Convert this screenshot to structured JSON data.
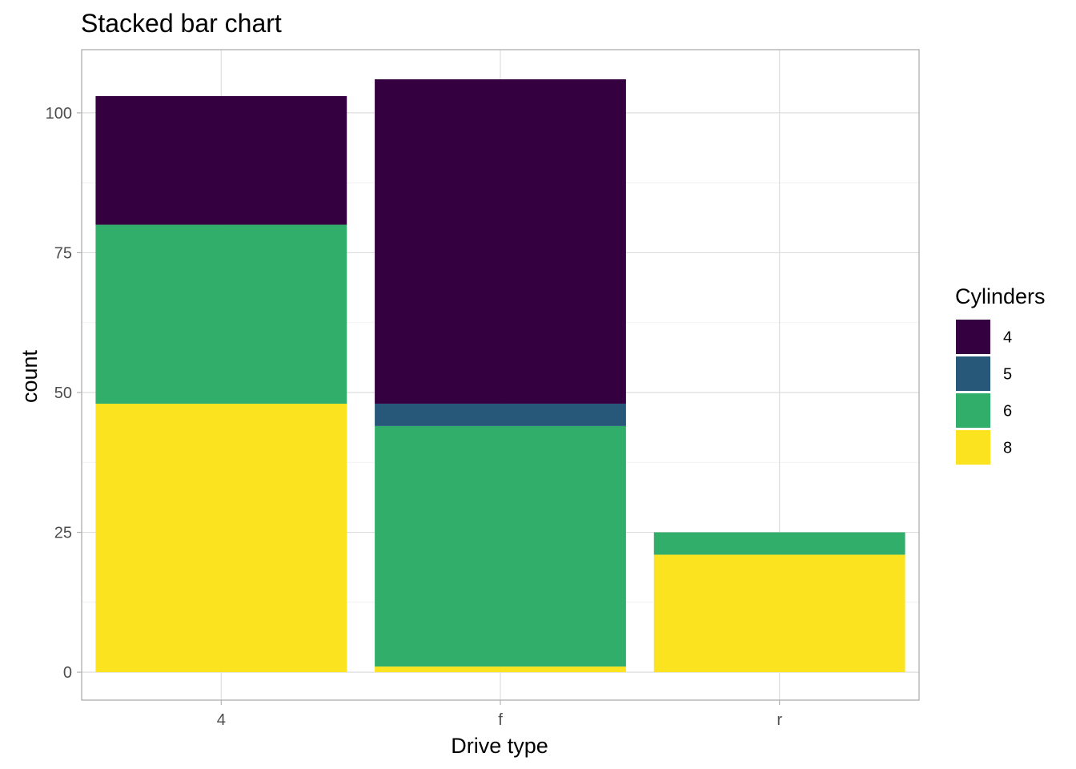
{
  "chart_data": {
    "type": "bar",
    "stacked": true,
    "title": "Stacked bar chart",
    "xlabel": "Drive type",
    "ylabel": "count",
    "categories": [
      "4",
      "f",
      "r"
    ],
    "series": [
      {
        "name": "4",
        "color": "#35003f",
        "values": [
          23,
          58,
          0
        ]
      },
      {
        "name": "5",
        "color": "#27587a",
        "values": [
          0,
          4,
          0
        ]
      },
      {
        "name": "6",
        "color": "#32ae6b",
        "values": [
          32,
          43,
          4
        ]
      },
      {
        "name": "8",
        "color": "#fbe320",
        "values": [
          48,
          1,
          21
        ]
      }
    ],
    "stack_order": [
      "8",
      "6",
      "5",
      "4"
    ],
    "ylim": [
      -5,
      111.3
    ],
    "yticks": [
      0,
      25,
      50,
      75,
      100
    ],
    "grid": true,
    "legend": {
      "title": "Cylinders",
      "position": "right"
    }
  }
}
